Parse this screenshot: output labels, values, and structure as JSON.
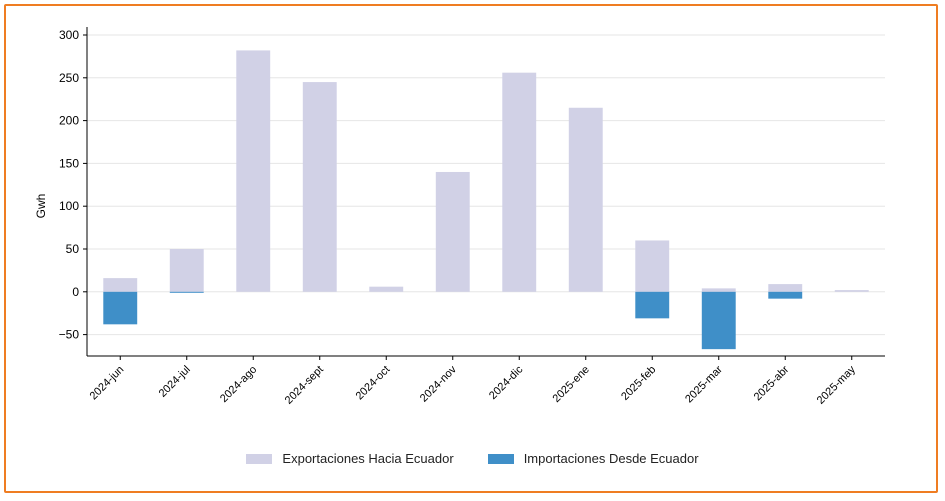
{
  "chart_data": {
    "type": "bar",
    "stacked": true,
    "ylabel": "Gwh",
    "xlabel": "",
    "ylim": [
      -75,
      300
    ],
    "yticks": [
      -50,
      0,
      50,
      100,
      150,
      200,
      250,
      300
    ],
    "ytick_labels": [
      "−50",
      "0",
      "50",
      "100",
      "150",
      "200",
      "250",
      "300"
    ],
    "grid": "horizontal",
    "legend_position": "bottom-center",
    "categories": [
      "2024-jun",
      "2024-jul",
      "2024-ago",
      "2024-sept",
      "2024-oct",
      "2024-nov",
      "2024-dic",
      "2025-ene",
      "2025-feb",
      "2025-mar",
      "2025-abr",
      "2025-may"
    ],
    "series": [
      {
        "name": "Exportaciones Hacia Ecuador",
        "color": "#d1d1e6",
        "values": [
          16,
          50,
          282,
          245,
          6,
          140,
          256,
          215,
          60,
          4,
          9,
          2
        ]
      },
      {
        "name": "Importaciones Desde Ecuador",
        "color": "#3f8fc8",
        "values": [
          -38,
          -1,
          0,
          0,
          0,
          0,
          0,
          0,
          -31,
          -67,
          -8,
          0
        ]
      }
    ]
  }
}
